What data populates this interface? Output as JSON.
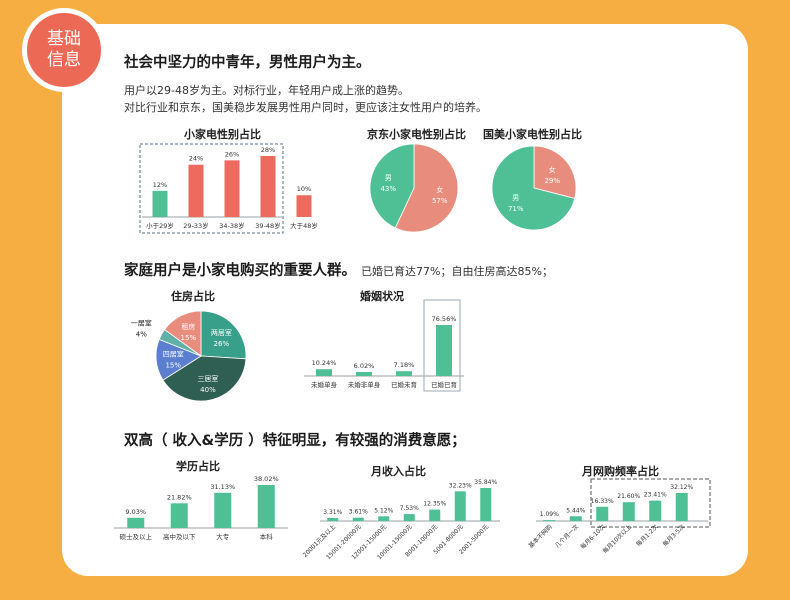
{
  "badge": {
    "line1": "基础",
    "line2": "信息"
  },
  "section1": {
    "heading": "社会中坚力的中青年，男性用户为主。",
    "line1": "用户以29-48岁为主。对标行业，年轻用户成上涨的趋势。",
    "line2": "对比行业和京东，国美稳步发展男性用户同时，更应该注女性用户的培养。"
  },
  "section2": {
    "heading": "家庭用户是小家电购买的重要人群。",
    "sub": "已婚已育达77%；自由住房高达85%；"
  },
  "section3": {
    "heading": "双高（ 收入&学历 ）特征明显，有较强的消费意愿；"
  },
  "colors": {
    "green": "#4fbf96",
    "red": "#ec6b5e",
    "blue": "#5b7fce",
    "teal": "#38a08a",
    "dark": "#2f5e52",
    "pink": "#e88d7e",
    "bg": "#f6ad42"
  },
  "chart_data": [
    {
      "id": "age",
      "type": "bar",
      "title": "小家电性别占比",
      "categories": [
        "小于29岁",
        "29-33岁",
        "34-38岁",
        "39-48岁",
        "大于48岁"
      ],
      "values": [
        12,
        24,
        26,
        28,
        10
      ],
      "labels": [
        "12%",
        "24%",
        "26%",
        "28%",
        "10%"
      ]
    },
    {
      "id": "jd",
      "type": "pie",
      "title": "京东小家电性别占比",
      "slices": [
        {
          "name": "女",
          "label": "57%",
          "value": 57
        },
        {
          "name": "男",
          "label": "43%",
          "value": 43
        }
      ]
    },
    {
      "id": "gm",
      "type": "pie",
      "title": "国美小家电性别占比",
      "slices": [
        {
          "name": "女",
          "label": "29%",
          "value": 29
        },
        {
          "name": "男",
          "label": "71%",
          "value": 71
        }
      ]
    },
    {
      "id": "housing",
      "type": "pie",
      "title": "住房占比",
      "slices": [
        {
          "name": "两居室",
          "label": "26%",
          "value": 26
        },
        {
          "name": "三居室",
          "label": "40%",
          "value": 40
        },
        {
          "name": "四居室",
          "label": "15%",
          "value": 15
        },
        {
          "name": "一居室",
          "label": "4%",
          "value": 4
        },
        {
          "name": "租房",
          "label": "15%",
          "value": 15
        }
      ]
    },
    {
      "id": "marriage",
      "type": "bar",
      "title": "婚姻状况",
      "categories": [
        "未婚单身",
        "未婚非单身",
        "已婚未育",
        "已婚已育"
      ],
      "values": [
        10.24,
        6.02,
        7.18,
        76.56
      ],
      "labels": [
        "10.24%",
        "6.02%",
        "7.18%",
        "76.56%"
      ]
    },
    {
      "id": "edu",
      "type": "bar",
      "title": "学历占比",
      "categories": [
        "硕士及以上",
        "高中及以下",
        "大专",
        "本科"
      ],
      "values": [
        9.03,
        21.82,
        31.13,
        38.02
      ],
      "labels": [
        "9.03%",
        "21.82%",
        "31.13%",
        "38.02%"
      ]
    },
    {
      "id": "income",
      "type": "bar",
      "title": "月收入占比",
      "categories": [
        "20001元及以上",
        "15001-20000元",
        "12001-15000元",
        "10001-15000元",
        "8001-10000元",
        "5001-8000元",
        "2001-5000元"
      ],
      "values": [
        3.31,
        3.61,
        5.12,
        7.53,
        12.35,
        32.23,
        35.84
      ],
      "labels": [
        "3.31%",
        "3.61%",
        "5.12%",
        "7.53%",
        "12.35%",
        "32.23%",
        "35.84%"
      ]
    },
    {
      "id": "freq",
      "type": "bar",
      "title": "月网购频率占比",
      "categories": [
        "基本不网购",
        "几个月一次",
        "每月6-10次",
        "每月10次以上",
        "每月1-2次",
        "每月3-5次"
      ],
      "values": [
        1.09,
        5.44,
        16.33,
        21.6,
        23.41,
        32.12
      ],
      "labels": [
        "1.09%",
        "5.44%",
        "16.33%",
        "21.60%",
        "23.41%",
        "32.12%"
      ]
    }
  ]
}
